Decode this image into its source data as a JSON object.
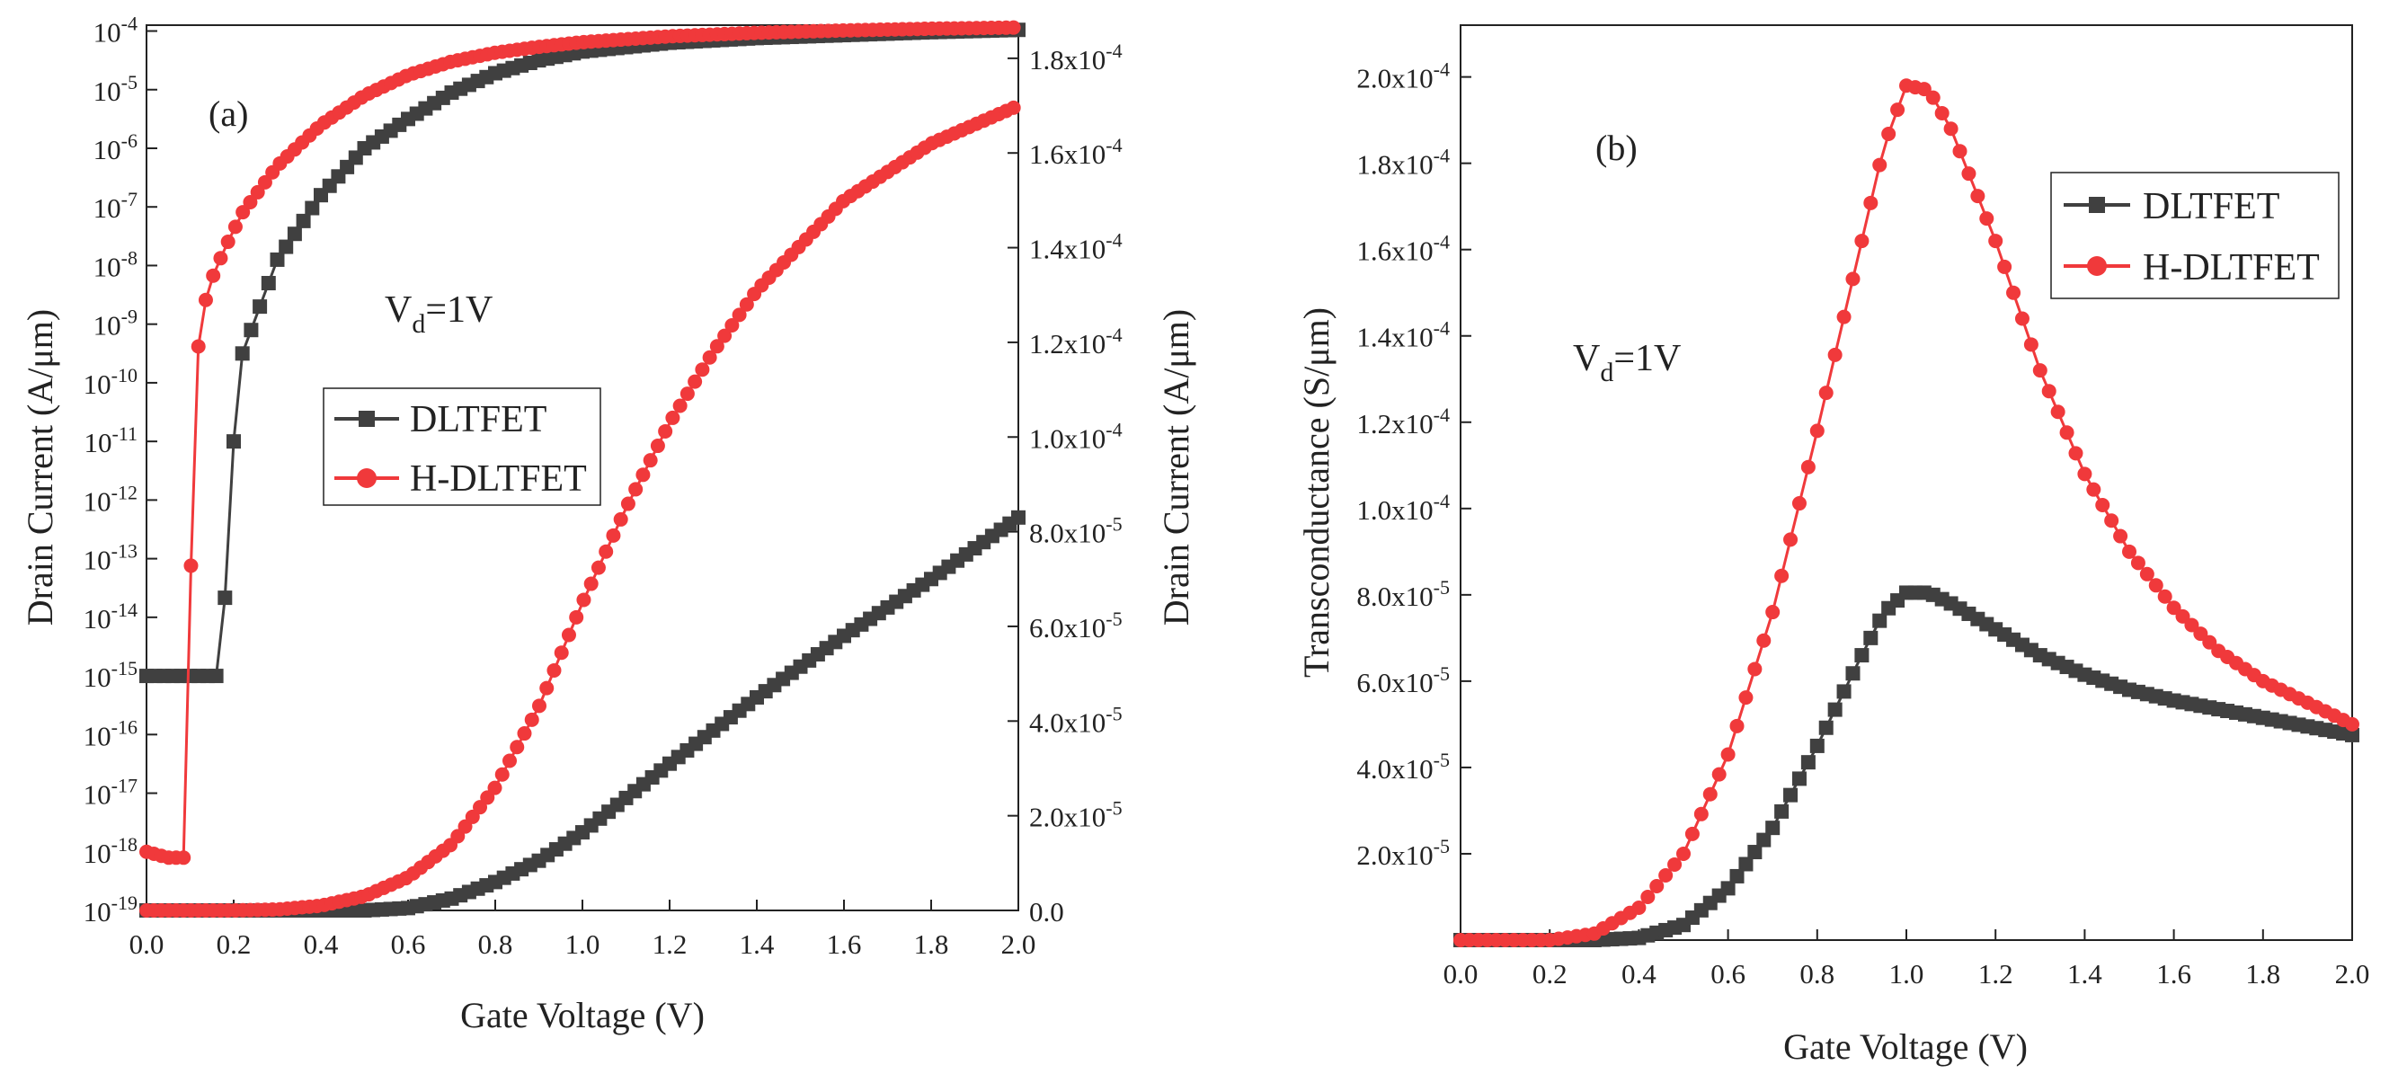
{
  "colors": {
    "dltfet": "#404040",
    "hdltfet": "#f0393b",
    "axis": "#222222"
  },
  "chart_data": [
    {
      "id": "a",
      "type": "line",
      "panel_label": "(a)",
      "title": "",
      "xlabel": "Gate Voltage (V)",
      "ylabel_left": "Drain Current (A/μm)",
      "ylabel_right": "Drain Current (A/μm)",
      "annotation": {
        "base": "V",
        "sub": "d",
        "rest": "=1V"
      },
      "x_ticks": [
        "0.0",
        "0.2",
        "0.4",
        "0.6",
        "0.8",
        "1.0",
        "1.2",
        "1.4",
        "1.6",
        "1.8",
        "2.0"
      ],
      "xlim": [
        0,
        2.0
      ],
      "left_axis": {
        "scale": "log",
        "ylim_exp": [
          -19,
          -4
        ],
        "tick_labels": [
          {
            "exp": -4,
            "base": "10",
            "sup": "-4"
          },
          {
            "exp": -5,
            "base": "10",
            "sup": "-5"
          },
          {
            "exp": -6,
            "base": "10",
            "sup": "-6"
          },
          {
            "exp": -7,
            "base": "10",
            "sup": "-7"
          },
          {
            "exp": -8,
            "base": "10",
            "sup": "-8"
          },
          {
            "exp": -9,
            "base": "10",
            "sup": "-9"
          },
          {
            "exp": -10,
            "base": "10",
            "sup": "-10"
          },
          {
            "exp": -11,
            "base": "10",
            "sup": "-11"
          },
          {
            "exp": -12,
            "base": "10",
            "sup": "-12"
          },
          {
            "exp": -13,
            "base": "10",
            "sup": "-13"
          },
          {
            "exp": -14,
            "base": "10",
            "sup": "-14"
          },
          {
            "exp": -15,
            "base": "10",
            "sup": "-15"
          },
          {
            "exp": -16,
            "base": "10",
            "sup": "-16"
          },
          {
            "exp": -17,
            "base": "10",
            "sup": "-17"
          },
          {
            "exp": -18,
            "base": "10",
            "sup": "-18"
          },
          {
            "exp": -19,
            "base": "10",
            "sup": "-19"
          }
        ]
      },
      "right_axis": {
        "scale": "linear",
        "ylim": [
          0,
          0.000187
        ],
        "tick_labels": [
          {
            "value": 0,
            "text": "0.0",
            "sup": ""
          },
          {
            "value": 2e-05,
            "text": "2.0x10",
            "sup": "-5"
          },
          {
            "value": 4e-05,
            "text": "4.0x10",
            "sup": "-5"
          },
          {
            "value": 6e-05,
            "text": "6.0x10",
            "sup": "-5"
          },
          {
            "value": 8e-05,
            "text": "8.0x10",
            "sup": "-5"
          },
          {
            "value": 0.0001,
            "text": "1.0x10",
            "sup": "-4"
          },
          {
            "value": 0.00012,
            "text": "1.2x10",
            "sup": "-4"
          },
          {
            "value": 0.00014,
            "text": "1.4x10",
            "sup": "-4"
          },
          {
            "value": 0.00016,
            "text": "1.6x10",
            "sup": "-4"
          },
          {
            "value": 0.00018,
            "text": "1.8x10",
            "sup": "-4"
          }
        ]
      },
      "legend": {
        "placement": "center-left",
        "entries": [
          "DLTFET",
          "H-DLTFET"
        ]
      },
      "series": [
        {
          "name": "DLTFET",
          "axis": "left",
          "marker": "square",
          "color": "#404040",
          "x": [
            0,
            0.1,
            0.17,
            0.2,
            0.22,
            0.25,
            0.3,
            0.4,
            0.5,
            0.6,
            0.7,
            0.8,
            0.9,
            1.0,
            1.2,
            1.4,
            1.6,
            1.8,
            2.0
          ],
          "log10_y": [
            -15.0,
            -15.0,
            -15.0,
            -11.0,
            -9.5,
            -8.9,
            -7.9,
            -6.8,
            -6.0,
            -5.5,
            -5.05,
            -4.72,
            -4.5,
            -4.35,
            -4.2,
            -4.12,
            -4.07,
            -4.02,
            -3.98
          ]
        },
        {
          "name": "H-DLTFET",
          "axis": "left",
          "marker": "circle",
          "color": "#f0393b",
          "x": [
            0,
            0.05,
            0.09,
            0.11,
            0.14,
            0.18,
            0.22,
            0.3,
            0.4,
            0.5,
            0.6,
            0.7,
            0.8,
            0.9,
            1.0,
            1.2,
            1.4,
            1.6,
            1.8,
            2.0
          ],
          "log10_y": [
            -18.0,
            -18.1,
            -18.1,
            -9.8,
            -8.4,
            -7.7,
            -7.1,
            -6.3,
            -5.6,
            -5.1,
            -4.75,
            -4.52,
            -4.37,
            -4.27,
            -4.19,
            -4.09,
            -4.03,
            -3.99,
            -3.96,
            -3.94
          ]
        },
        {
          "name": "DLTFET",
          "axis": "right",
          "marker": "square",
          "color": "#404040",
          "x": [
            0,
            0.2,
            0.4,
            0.5,
            0.6,
            0.7,
            0.8,
            0.9,
            1.0,
            1.2,
            1.4,
            1.6,
            1.8,
            2.0
          ],
          "y": [
            0,
            0,
            0,
            0,
            5e-07,
            2.5e-06,
            6e-06,
            1.05e-05,
            1.65e-05,
            3.1e-05,
            4.5e-05,
            5.8e-05,
            7e-05,
            8.3e-05
          ]
        },
        {
          "name": "H-DLTFET",
          "axis": "right",
          "marker": "circle",
          "color": "#f0393b",
          "x": [
            0,
            0.2,
            0.3,
            0.4,
            0.5,
            0.6,
            0.7,
            0.8,
            0.9,
            1.0,
            1.1,
            1.2,
            1.3,
            1.4,
            1.6,
            1.8,
            2.0
          ],
          "y": [
            0,
            0,
            2e-07,
            1e-06,
            3e-06,
            7e-06,
            1.4e-05,
            2.6e-05,
            4.3e-05,
            6.5e-05,
            8.5e-05,
            0.000103,
            0.000118,
            0.000131,
            0.00015,
            0.000162,
            0.00017
          ]
        }
      ]
    },
    {
      "id": "b",
      "type": "line",
      "panel_label": "(b)",
      "title": "",
      "xlabel": "Gate Voltage (V)",
      "ylabel": "Transconductance  (S/μm)",
      "annotation": {
        "base": "V",
        "sub": "d",
        "rest": "=1V"
      },
      "x_ticks": [
        "0.0",
        "0.2",
        "0.4",
        "0.6",
        "0.8",
        "1.0",
        "1.2",
        "1.4",
        "1.6",
        "1.8",
        "2.0"
      ],
      "xlim": [
        0,
        2.0
      ],
      "ylim": [
        0,
        0.000212
      ],
      "y_tick_labels": [
        {
          "value": 2e-05,
          "text": "2.0x10",
          "sup": "-5"
        },
        {
          "value": 4e-05,
          "text": "4.0x10",
          "sup": "-5"
        },
        {
          "value": 6e-05,
          "text": "6.0x10",
          "sup": "-5"
        },
        {
          "value": 8e-05,
          "text": "8.0x10",
          "sup": "-5"
        },
        {
          "value": 0.0001,
          "text": "1.0x10",
          "sup": "-4"
        },
        {
          "value": 0.00012,
          "text": "1.2x10",
          "sup": "-4"
        },
        {
          "value": 0.00014,
          "text": "1.4x10",
          "sup": "-4"
        },
        {
          "value": 0.00016,
          "text": "1.6x10",
          "sup": "-4"
        },
        {
          "value": 0.00018,
          "text": "1.8x10",
          "sup": "-4"
        },
        {
          "value": 0.0002,
          "text": "2.0x10",
          "sup": "-4"
        }
      ],
      "legend": {
        "placement": "top-right",
        "entries": [
          "DLTFET",
          "H-DLTFET"
        ]
      },
      "series": [
        {
          "name": "DLTFET",
          "marker": "square",
          "color": "#404040",
          "x": [
            0,
            0.3,
            0.4,
            0.5,
            0.6,
            0.7,
            0.8,
            0.9,
            0.95,
            1.0,
            1.05,
            1.1,
            1.2,
            1.3,
            1.4,
            1.5,
            1.6,
            1.7,
            1.8,
            1.9,
            2.0
          ],
          "y": [
            0,
            0,
            5e-07,
            3.5e-06,
            1.2e-05,
            2.6e-05,
            4.5e-05,
            6.6e-05,
            7.6e-05,
            8.05e-05,
            8.05e-05,
            7.8e-05,
            7.2e-05,
            6.6e-05,
            6.15e-05,
            5.8e-05,
            5.55e-05,
            5.35e-05,
            5.15e-05,
            4.95e-05,
            4.75e-05
          ]
        },
        {
          "name": "H-DLTFET",
          "marker": "circle",
          "color": "#f0393b",
          "x": [
            0,
            0.2,
            0.3,
            0.4,
            0.5,
            0.6,
            0.7,
            0.8,
            0.9,
            0.95,
            1.0,
            1.05,
            1.1,
            1.2,
            1.3,
            1.4,
            1.5,
            1.6,
            1.7,
            1.8,
            1.9,
            2.0
          ],
          "y": [
            0,
            0,
            1.5e-06,
            7.5e-06,
            2e-05,
            4.3e-05,
            7.6e-05,
            0.000118,
            0.000162,
            0.000184,
            0.000198,
            0.000197,
            0.000188,
            0.000162,
            0.000132,
            0.000108,
            9e-05,
            7.7e-05,
            6.7e-05,
            6e-05,
            5.5e-05,
            5e-05
          ]
        }
      ]
    }
  ]
}
